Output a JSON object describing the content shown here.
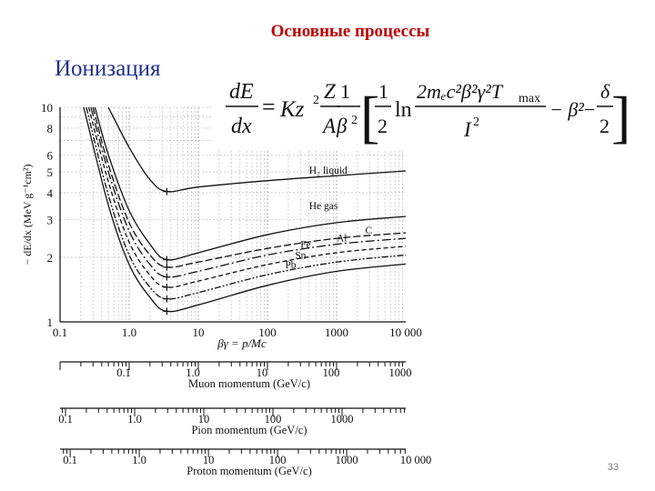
{
  "slide": {
    "title": "Основные процессы",
    "subtitle": "Ионизация",
    "page_number": "33"
  },
  "formula": {
    "lhs_num": "dE",
    "lhs_den": "dx",
    "equals": "=",
    "K": "Kz",
    "z_exp": "2",
    "Z": "Z",
    "A": "A",
    "one": "1",
    "beta2": "β",
    "bracket_open": "[",
    "half_num": "1",
    "half_den": "2",
    "ln": "ln",
    "ln_num": "2mₑc²β²γ²T",
    "tmax": "max",
    "ln_den": "I",
    "I_exp": "2",
    "minus_beta": "− β²",
    "minus": "−",
    "delta": "δ",
    "delta_den": "2",
    "bracket_close": "]"
  },
  "chart_data": {
    "type": "line",
    "xscale": "log",
    "yscale": "log",
    "xlim": [
      0.1,
      10000
    ],
    "ylim": [
      1,
      10
    ],
    "xlabel": "βγ = p/Mc",
    "ylabel": "− dE/dx (MeV g⁻¹cm²)",
    "x_ticks": [
      "0.1",
      "1.0",
      "10",
      "100",
      "1000",
      "10 000"
    ],
    "y_ticks": [
      {
        "value": 1,
        "label": "1"
      },
      {
        "value": 2,
        "label": "2"
      },
      {
        "value": 3,
        "label": "3"
      },
      {
        "value": 4,
        "label": "4"
      },
      {
        "value": 5,
        "label": "5"
      },
      {
        "value": 6,
        "label": "6"
      },
      {
        "value": 8,
        "label": "8"
      },
      {
        "value": 10,
        "label": "10"
      }
    ],
    "grid": true,
    "series": [
      {
        "name": "H₂ liquid",
        "label_at": [
          400,
          4.9
        ],
        "dash": "",
        "x": [
          0.5,
          1,
          2,
          3.5,
          10,
          100,
          1000,
          10000
        ],
        "y": [
          10,
          6.5,
          4.6,
          4.05,
          4.25,
          4.55,
          4.8,
          5.05
        ]
      },
      {
        "name": "He gas",
        "label_at": [
          400,
          3.35
        ],
        "dash": "",
        "x": [
          0.32,
          0.5,
          1,
          2,
          3.5,
          10,
          100,
          1000,
          10000
        ],
        "y": [
          10,
          6.0,
          3.3,
          2.3,
          1.95,
          2.1,
          2.55,
          2.9,
          3.1
        ]
      },
      {
        "name": "C",
        "label_at": [
          2600,
          2.58
        ],
        "dash": "8 3",
        "x": [
          0.3,
          0.5,
          1,
          2,
          3.5,
          10,
          100,
          1000,
          10000
        ],
        "y": [
          10,
          5.4,
          2.9,
          2.05,
          1.8,
          1.9,
          2.2,
          2.45,
          2.6
        ]
      },
      {
        "name": "Al",
        "label_at": [
          1000,
          2.37
        ],
        "dash": "10 3 2 3",
        "x": [
          0.28,
          0.5,
          1,
          2,
          3.5,
          10,
          100,
          1000,
          10000
        ],
        "y": [
          10,
          5.0,
          2.65,
          1.85,
          1.62,
          1.72,
          2.05,
          2.3,
          2.45
        ]
      },
      {
        "name": "Fe",
        "label_at": [
          300,
          2.22
        ],
        "dash": "5 3",
        "x": [
          0.26,
          0.5,
          1,
          2,
          3.5,
          10,
          100,
          1000,
          10000
        ],
        "y": [
          10,
          4.5,
          2.35,
          1.65,
          1.45,
          1.55,
          1.85,
          2.1,
          2.25
        ]
      },
      {
        "name": "Sn",
        "label_at": [
          250,
          1.97
        ],
        "dash": "7 2 2 2 2 2",
        "x": [
          0.24,
          0.5,
          1,
          2,
          3.5,
          10,
          100,
          1000,
          10000
        ],
        "y": [
          10,
          3.9,
          2.05,
          1.45,
          1.28,
          1.37,
          1.66,
          1.9,
          2.05
        ]
      },
      {
        "name": "Pb",
        "label_at": [
          180,
          1.78
        ],
        "dash": "",
        "x": [
          0.22,
          0.5,
          1,
          2,
          3.5,
          10,
          100,
          1000,
          10000
        ],
        "y": [
          10,
          3.5,
          1.85,
          1.3,
          1.12,
          1.2,
          1.48,
          1.72,
          1.86
        ]
      }
    ],
    "momentum_scales": [
      {
        "name": "Muon momentum (GeV/c)",
        "ticks": [
          "0.1",
          "1.0",
          "10",
          "100",
          "1000"
        ],
        "positions": [
          0.1,
          1,
          10,
          100,
          1000
        ],
        "shift": 0.0
      },
      {
        "name": "Pion momentum (GeV/c)",
        "ticks": [
          "0.1",
          "1.0",
          "10",
          "100",
          "1000"
        ],
        "positions": [
          0.1,
          1,
          10,
          100,
          1000
        ],
        "shift": 0.0
      },
      {
        "name": "Proton momentum (GeV/c)",
        "ticks": [
          "0.1",
          "1.0",
          "10",
          "100",
          "1000",
          "10 000"
        ],
        "positions": [
          0.1,
          1,
          10,
          100,
          1000,
          10000
        ],
        "shift": 0.0
      }
    ]
  }
}
